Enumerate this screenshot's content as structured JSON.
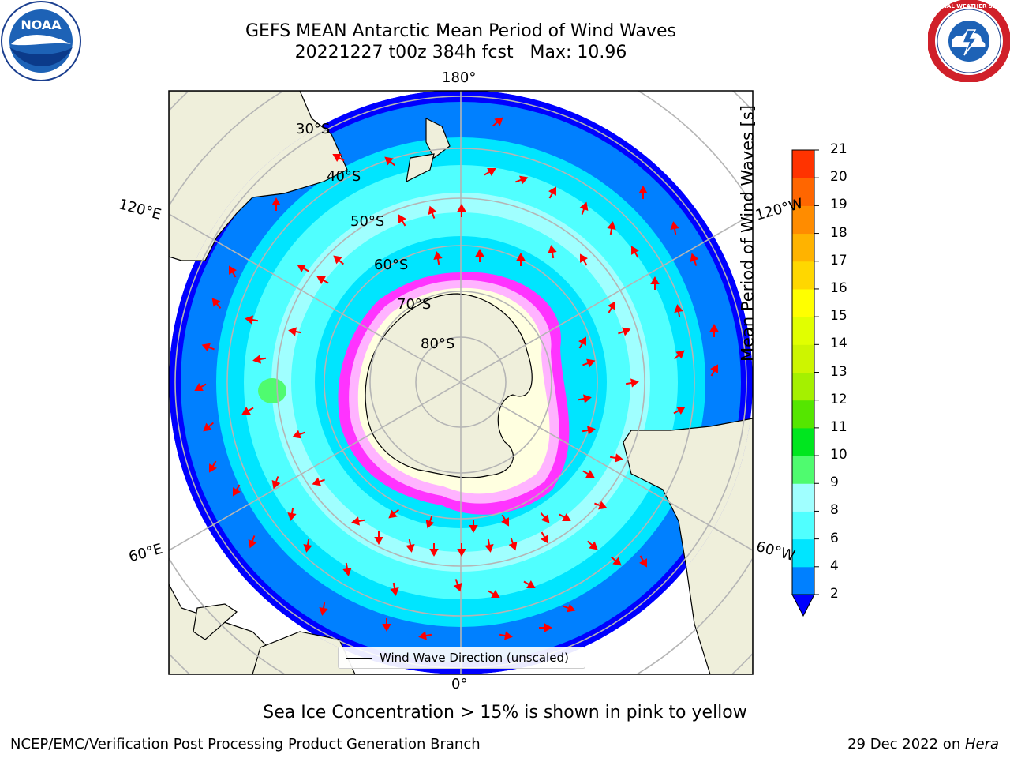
{
  "header": {
    "title_line1": "GEFS MEAN Antarctic Mean Period of Wind Waves",
    "title_line2": "20221227 t00z 384h fcst   Max: 10.96"
  },
  "logos": {
    "left": "noaa-logo",
    "left_text": "NOAA",
    "right": "national-weather-service-logo",
    "right_text": "NATIONAL WEATHER SERVICE"
  },
  "map": {
    "projection": "south-polar-stereographic",
    "longitude_labels": {
      "top": "180°",
      "bottom": "0°",
      "left_upper": "120°E",
      "left_lower": "60°E",
      "right_upper": "120°W",
      "right_lower": "60°W"
    },
    "latitude_labels": [
      "30°S",
      "40°S",
      "50°S",
      "60°S",
      "70°S",
      "80°S"
    ],
    "land_color": "#efefdb",
    "ocean_colors": [
      "#0000ff",
      "#0080ff",
      "#00e5ff",
      "#50ffff",
      "#a0ffff"
    ],
    "sea_ice_colors": [
      "#ff33ff",
      "#ffb3ff",
      "#ffffe0"
    ]
  },
  "colorbar": {
    "label": "Mean Period of Wind Waves [s]",
    "ticks": [
      "2",
      "4",
      "6",
      "8",
      "9",
      "10",
      "11",
      "12",
      "13",
      "14",
      "15",
      "16",
      "17",
      "18",
      "19",
      "20",
      "21"
    ],
    "colors": [
      "#0080ff",
      "#00e5ff",
      "#50ffff",
      "#a0ffff",
      "#4ffb6f",
      "#00e61f",
      "#55e600",
      "#a5f000",
      "#cdf500",
      "#e1ff00",
      "#ffff00",
      "#ffd700",
      "#ffb300",
      "#ff8c00",
      "#ff6600",
      "#ff3300",
      "#ff0000"
    ],
    "under_color": "#0000ff"
  },
  "legend": {
    "label": "Wind Wave Direction (unscaled)"
  },
  "bottom_note": "Sea Ice Concentration > 15% is shown in pink to yellow",
  "footer": {
    "left": "NCEP/EMC/Verification Post Processing Product Generation Branch",
    "right_date": "29 Dec 2022 on ",
    "right_host": "Hera"
  }
}
